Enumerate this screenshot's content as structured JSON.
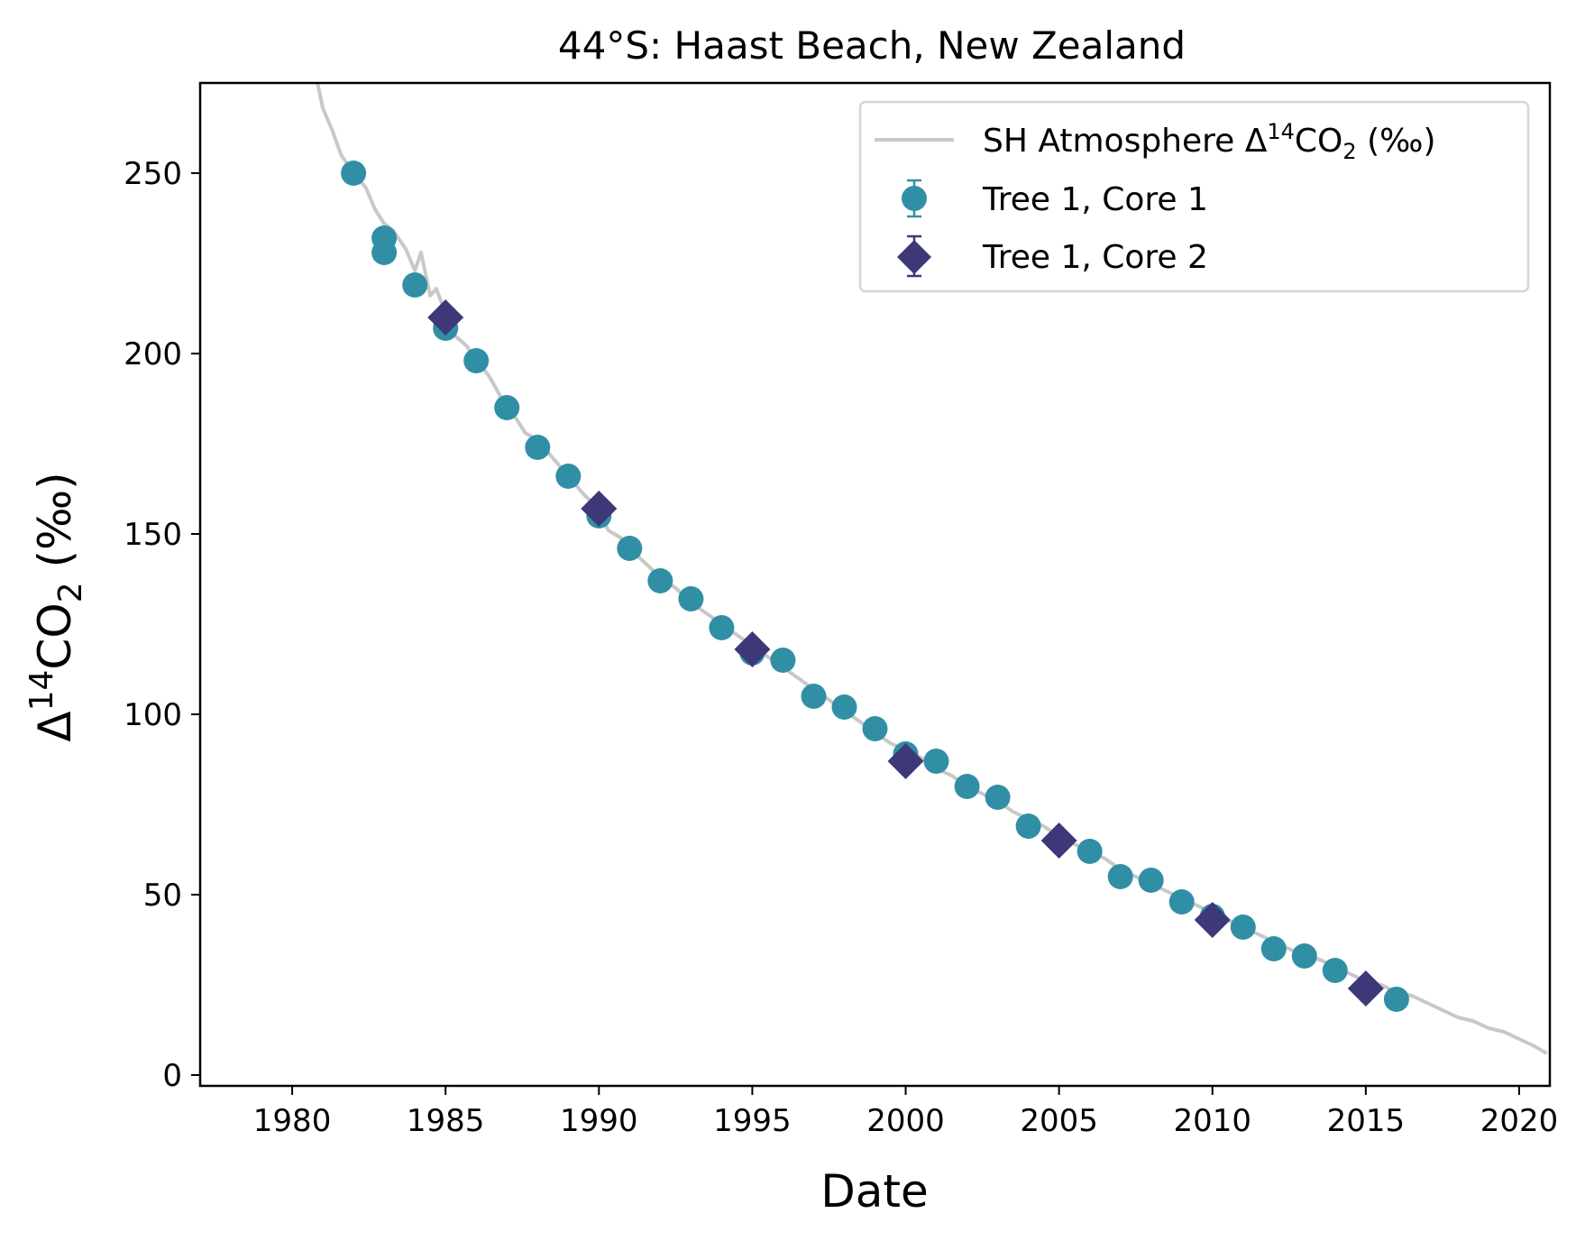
{
  "chart_data": {
    "type": "scatter",
    "title": "44°S: Haast Beach, New Zealand",
    "xlabel": "Date",
    "ylabel": {
      "delta": "Δ",
      "sup": "14",
      "co": "CO",
      "sub": "2",
      "unit": " (‰)"
    },
    "xlim": [
      1977.0,
      2021.0
    ],
    "ylim": [
      -3,
      275
    ],
    "xticks": [
      "1980",
      "1985",
      "1990",
      "1995",
      "2000",
      "2005",
      "2010",
      "2015",
      "2020"
    ],
    "yticks": [
      "0",
      "50",
      "100",
      "150",
      "200",
      "250"
    ],
    "grid": false,
    "legend_position": "top-right",
    "colors": {
      "line": "#c8c8c8",
      "core1": "#318fa5",
      "core2": "#3d3878"
    },
    "legend": {
      "line": {
        "text": "SH Atmosphere Δ",
        "sup": "14",
        "mid": "CO",
        "sub": "2",
        "end": " (‰)"
      },
      "core1": "Tree 1, Core 1",
      "core2": "Tree 1, Core 2"
    },
    "series": [
      {
        "name": "SH Atmosphere Δ14CO2 (‰)",
        "kind": "line",
        "x": [
          1980.8,
          1981.0,
          1981.3,
          1981.6,
          1982.0,
          1982.4,
          1982.7,
          1983.0,
          1983.3,
          1983.7,
          1984.0,
          1984.2,
          1984.5,
          1984.7,
          1985.0,
          1985.3,
          1985.7,
          1986.0,
          1986.4,
          1986.8,
          1987.0,
          1987.3,
          1987.6,
          1988.0,
          1988.4,
          1988.8,
          1989.0,
          1989.5,
          1990.0,
          1990.3,
          1990.7,
          1991.0,
          1991.5,
          1992.0,
          1992.5,
          1993.0,
          1993.5,
          1994.0,
          1994.5,
          1995.0,
          1995.5,
          1996.0,
          1996.5,
          1997.0,
          1997.5,
          1998.0,
          1998.5,
          1999.0,
          1999.5,
          2000.0,
          2000.5,
          2001.0,
          2001.5,
          2002.0,
          2002.5,
          2003.0,
          2003.5,
          2004.0,
          2004.5,
          2005.0,
          2005.5,
          2006.0,
          2006.5,
          2007.0,
          2007.5,
          2008.0,
          2008.5,
          2009.0,
          2009.5,
          2010.0,
          2010.5,
          2011.0,
          2011.5,
          2012.0,
          2012.5,
          2013.0,
          2013.5,
          2014.0,
          2014.5,
          2015.0,
          2015.5,
          2016.0,
          2016.5,
          2017.0,
          2017.5,
          2018.0,
          2018.5,
          2019.0,
          2019.5,
          2020.0,
          2020.5,
          2020.9
        ],
        "y": [
          276,
          268,
          262,
          255,
          250,
          246,
          240,
          236,
          234,
          229,
          223,
          228,
          216,
          218,
          211,
          205,
          202,
          198,
          194,
          188,
          184,
          182,
          178,
          176,
          172,
          168,
          166,
          161,
          157,
          151,
          149,
          146,
          142,
          138,
          135,
          131,
          128,
          125,
          122,
          119,
          116,
          113,
          110,
          107,
          104,
          101,
          98,
          95,
          92,
          90,
          88,
          85,
          83,
          80,
          78,
          76,
          73,
          71,
          69,
          66,
          64,
          62,
          60,
          57,
          55,
          53,
          51,
          49,
          47,
          45,
          43,
          41,
          39,
          37,
          35,
          33,
          32,
          30,
          28,
          26,
          25,
          23,
          22,
          20,
          18,
          16,
          15,
          13,
          12,
          10,
          8,
          6
        ]
      },
      {
        "name": "Tree 1, Core 1",
        "kind": "scatter",
        "marker": "circle",
        "x": [
          1982,
          1983,
          1983,
          1984,
          1985,
          1986,
          1987,
          1988,
          1989,
          1990,
          1991,
          1992,
          1993,
          1994,
          1995,
          1996,
          1997,
          1998,
          1999,
          2000,
          2001,
          2002,
          2003,
          2004,
          2006,
          2007,
          2008,
          2009,
          2010,
          2011,
          2012,
          2013,
          2014,
          2016
        ],
        "y": [
          250,
          232,
          228,
          219,
          207,
          198,
          185,
          174,
          166,
          155,
          146,
          137,
          132,
          124,
          117,
          115,
          105,
          102,
          96,
          89,
          87,
          80,
          77,
          69,
          62,
          55,
          54,
          48,
          44,
          41,
          35,
          33,
          29,
          21
        ]
      },
      {
        "name": "Tree 1, Core 2",
        "kind": "scatter",
        "marker": "diamond",
        "x": [
          1985,
          1990,
          1995,
          2000,
          2005,
          2010,
          2015
        ],
        "y": [
          210,
          157,
          118,
          87,
          65,
          43,
          24
        ]
      }
    ]
  }
}
